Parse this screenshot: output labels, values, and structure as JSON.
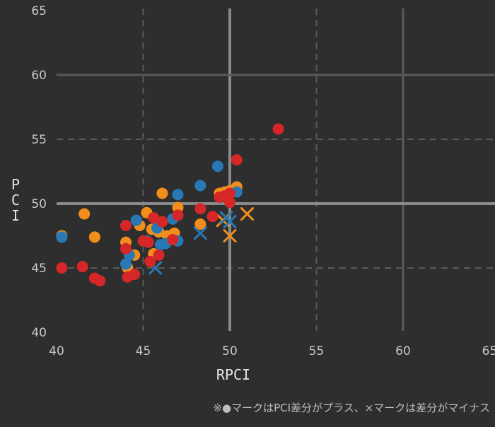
{
  "chart_data": {
    "type": "scatter",
    "title": "",
    "xlabel": "RPCI",
    "ylabel": "PCI",
    "xlim": [
      40,
      65
    ],
    "ylim": [
      40,
      65
    ],
    "x_ticks": [
      40,
      45,
      50,
      55,
      60,
      65
    ],
    "y_ticks": [
      40,
      45,
      50,
      55,
      60,
      65
    ],
    "grid": true,
    "background": "#2e2e2e",
    "reference_lines": {
      "solid_x": [
        50,
        60
      ],
      "dashed_x": [
        45,
        55
      ],
      "solid_y": [
        50,
        60
      ],
      "dashed_y": [
        45,
        55
      ],
      "highlight_color": "#8a8a8a",
      "grid_color": "#5a5a5a"
    },
    "marker_legend": {
      "circle": "PCI差分がプラス",
      "cross": "差分がマイナス"
    },
    "series": [
      {
        "color": "#f28e1c",
        "circles": [
          [
            40.3,
            47.5
          ],
          [
            41.6,
            49.2
          ],
          [
            42.2,
            47.4
          ],
          [
            44.0,
            47.0
          ],
          [
            44.1,
            45.0
          ],
          [
            44.5,
            46.0
          ],
          [
            44.8,
            48.3
          ],
          [
            45.2,
            49.3
          ],
          [
            45.5,
            48.0
          ],
          [
            45.6,
            46.1
          ],
          [
            45.9,
            47.8
          ],
          [
            46.1,
            50.8
          ],
          [
            46.4,
            47.5
          ],
          [
            46.8,
            47.7
          ],
          [
            47.0,
            49.7
          ],
          [
            48.3,
            48.4
          ],
          [
            49.4,
            50.8
          ],
          [
            49.7,
            50.9
          ],
          [
            50.0,
            51.0
          ],
          [
            50.4,
            51.3
          ]
        ],
        "crosses": [
          [
            49.6,
            48.7
          ],
          [
            50.0,
            47.5
          ],
          [
            51.0,
            49.2
          ]
        ]
      },
      {
        "color": "#2878b5",
        "circles": [
          [
            40.3,
            47.4
          ],
          [
            44.0,
            45.3
          ],
          [
            44.2,
            46.0
          ],
          [
            44.6,
            48.7
          ],
          [
            45.2,
            47.1
          ],
          [
            45.8,
            48.1
          ],
          [
            46.0,
            46.8
          ],
          [
            46.3,
            46.9
          ],
          [
            46.7,
            48.8
          ],
          [
            47.0,
            47.1
          ],
          [
            47.0,
            50.7
          ],
          [
            48.3,
            51.4
          ],
          [
            49.3,
            52.9
          ],
          [
            50.4,
            50.9
          ]
        ],
        "crosses": [
          [
            45.7,
            45.0
          ],
          [
            48.3,
            47.7
          ],
          [
            49.8,
            48.9
          ],
          [
            50.0,
            48.6
          ]
        ]
      },
      {
        "color": "#d62728",
        "circles": [
          [
            40.3,
            45.0
          ],
          [
            41.5,
            45.1
          ],
          [
            42.2,
            44.2
          ],
          [
            42.5,
            44.0
          ],
          [
            44.0,
            48.3
          ],
          [
            44.0,
            46.5
          ],
          [
            44.1,
            44.3
          ],
          [
            44.5,
            44.5
          ],
          [
            45.0,
            47.1
          ],
          [
            45.3,
            47.0
          ],
          [
            45.4,
            45.5
          ],
          [
            45.6,
            48.9
          ],
          [
            46.1,
            48.6
          ],
          [
            45.9,
            46.0
          ],
          [
            46.7,
            47.2
          ],
          [
            47.0,
            49.1
          ],
          [
            48.3,
            49.6
          ],
          [
            49.0,
            49.0
          ],
          [
            49.4,
            50.5
          ],
          [
            49.7,
            50.6
          ],
          [
            50.0,
            50.8
          ],
          [
            50.0,
            50.1
          ],
          [
            50.4,
            53.4
          ],
          [
            52.8,
            55.8
          ]
        ],
        "crosses": []
      }
    ]
  },
  "footnote": {
    "symbol": "※",
    "circle_glyph": "●",
    "text_a": "マークはPCI差分がプラス、",
    "cross_glyph": "×",
    "text_b": "マークは差分がマイナス"
  }
}
